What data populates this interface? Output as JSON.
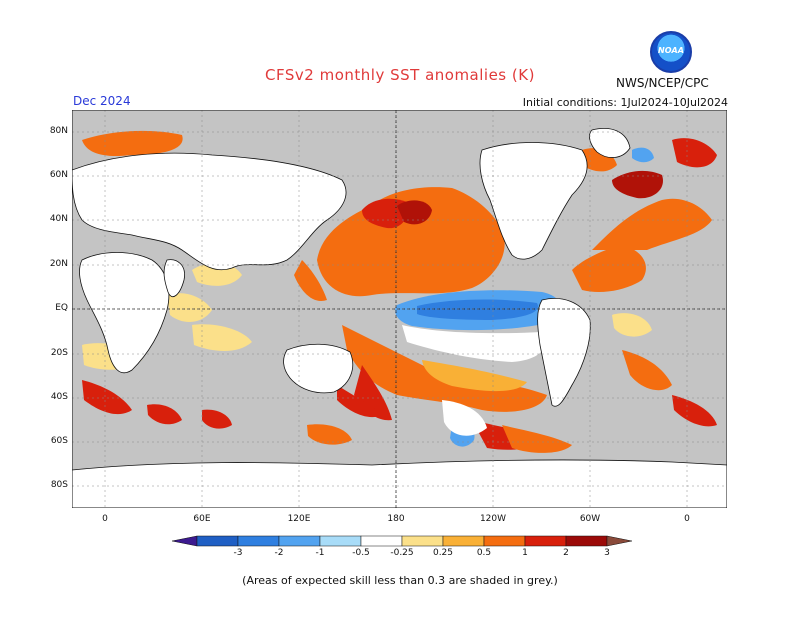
{
  "title": "CFSv2 monthly SST anomalies (K)",
  "valid_month": "Dec 2024",
  "initial_conditions": "Initial conditions: 1Jul2024-10Jul2024",
  "agency": "NWS/NCEP/CPC",
  "logo_text": "NOAA",
  "footnote": "(Areas of expected skill less than 0.3 are shaded in grey.)",
  "lat_ticks": [
    "80N",
    "60N",
    "40N",
    "20N",
    "EQ",
    "20S",
    "40S",
    "60S",
    "80S"
  ],
  "lon_ticks": [
    "0",
    "60E",
    "120E",
    "180",
    "120W",
    "60W",
    "0"
  ],
  "colorbar": {
    "labels": [
      "-3",
      "-2",
      "-1",
      "-0.5",
      "-0.25",
      "0.25",
      "0.5",
      "1",
      "2",
      "3"
    ],
    "colors": [
      "#3c1a8f",
      "#1f5fc4",
      "#2f7fe0",
      "#52a3f0",
      "#a8dcf8",
      "#ffffff",
      "#fbe08a",
      "#f9b036",
      "#f46d10",
      "#d8200c",
      "#9b0a08",
      "#8a4a3a"
    ]
  },
  "colors": {
    "ocean_grey": "#c4c4c4",
    "land": "#ffffff",
    "title_red": "#e03a3a",
    "month_blue": "#2a3ad8"
  }
}
